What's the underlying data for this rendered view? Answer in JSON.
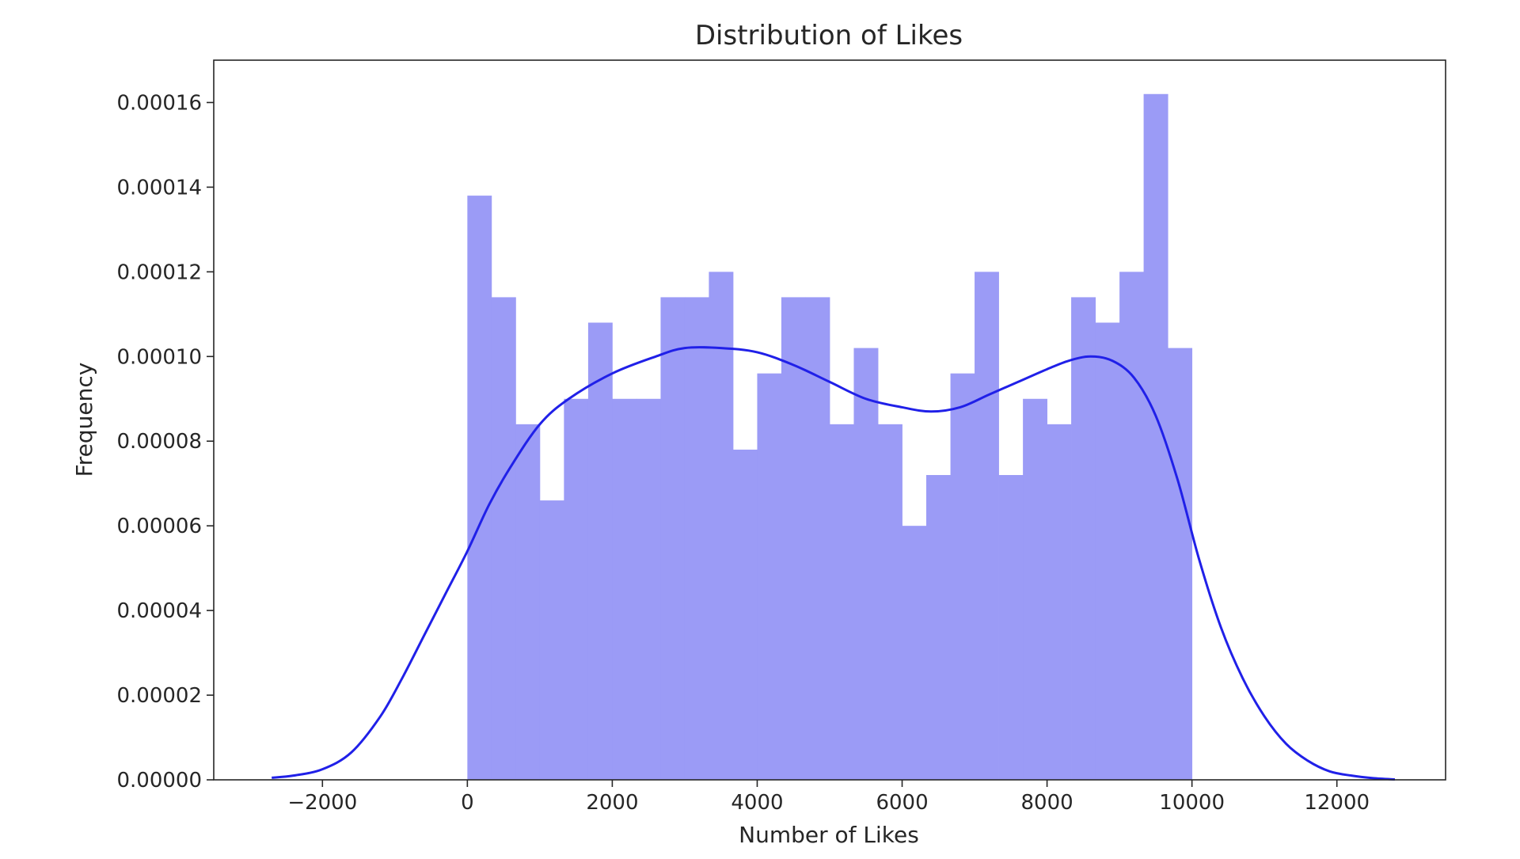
{
  "chart_data": {
    "type": "bar",
    "title": "Distribution of Likes",
    "xlabel": "Number of Likes",
    "ylabel": "Frequency",
    "xlim": [
      -3500,
      13500
    ],
    "ylim": [
      0,
      0.00017
    ],
    "x_ticks": [
      -2000,
      0,
      2000,
      4000,
      6000,
      8000,
      10000,
      12000
    ],
    "x_tick_labels": [
      "−2000",
      "0",
      "2000",
      "4000",
      "6000",
      "8000",
      "10000",
      "12000"
    ],
    "y_ticks": [
      0,
      2e-05,
      4e-05,
      6e-05,
      8e-05,
      0.0001,
      0.00012,
      0.00014,
      0.00016
    ],
    "y_tick_labels": [
      "0.00000",
      "0.00002",
      "0.00004",
      "0.00006",
      "0.00008",
      "0.00010",
      "0.00012",
      "0.00014",
      "0.00016"
    ],
    "grid": false,
    "series": [
      {
        "kind": "histogram",
        "color": "#9b9bf6",
        "bins": [
          {
            "x0": 0,
            "x1": 333,
            "value": 0.000138
          },
          {
            "x0": 333,
            "x1": 667,
            "value": 0.000114
          },
          {
            "x0": 667,
            "x1": 1000,
            "value": 8.4e-05
          },
          {
            "x0": 1000,
            "x1": 1333,
            "value": 6.6e-05
          },
          {
            "x0": 1333,
            "x1": 1667,
            "value": 9e-05
          },
          {
            "x0": 1667,
            "x1": 2000,
            "value": 0.000108
          },
          {
            "x0": 2000,
            "x1": 2333,
            "value": 9e-05
          },
          {
            "x0": 2333,
            "x1": 2667,
            "value": 9e-05
          },
          {
            "x0": 2667,
            "x1": 3000,
            "value": 0.000114
          },
          {
            "x0": 3000,
            "x1": 3333,
            "value": 0.000114
          },
          {
            "x0": 3333,
            "x1": 3667,
            "value": 0.00012
          },
          {
            "x0": 3667,
            "x1": 4000,
            "value": 7.8e-05
          },
          {
            "x0": 4000,
            "x1": 4333,
            "value": 9.6e-05
          },
          {
            "x0": 4333,
            "x1": 4667,
            "value": 0.000114
          },
          {
            "x0": 4667,
            "x1": 5000,
            "value": 0.000114
          },
          {
            "x0": 5000,
            "x1": 5333,
            "value": 8.4e-05
          },
          {
            "x0": 5333,
            "x1": 5667,
            "value": 0.000102
          },
          {
            "x0": 5667,
            "x1": 6000,
            "value": 8.4e-05
          },
          {
            "x0": 6000,
            "x1": 6333,
            "value": 6e-05
          },
          {
            "x0": 6333,
            "x1": 6667,
            "value": 7.2e-05
          },
          {
            "x0": 6667,
            "x1": 7000,
            "value": 9.6e-05
          },
          {
            "x0": 7000,
            "x1": 7333,
            "value": 0.00012
          },
          {
            "x0": 7333,
            "x1": 7667,
            "value": 7.2e-05
          },
          {
            "x0": 7667,
            "x1": 8000,
            "value": 9e-05
          },
          {
            "x0": 8000,
            "x1": 8333,
            "value": 8.4e-05
          },
          {
            "x0": 8333,
            "x1": 8667,
            "value": 0.000114
          },
          {
            "x0": 8667,
            "x1": 9000,
            "value": 0.000108
          },
          {
            "x0": 9000,
            "x1": 9333,
            "value": 0.00012
          },
          {
            "x0": 9333,
            "x1": 9667,
            "value": 0.000162
          },
          {
            "x0": 9667,
            "x1": 10000,
            "value": 0.000102
          }
        ]
      },
      {
        "kind": "kde-line",
        "color": "#2020e8",
        "x": [
          -2700,
          -2400,
          -2000,
          -1600,
          -1200,
          -900,
          -600,
          -300,
          0,
          300,
          600,
          1000,
          1400,
          2000,
          2600,
          3000,
          3500,
          4000,
          4500,
          5000,
          5500,
          6000,
          6400,
          6800,
          7200,
          7600,
          8000,
          8300,
          8600,
          8900,
          9200,
          9500,
          9800,
          10100,
          10400,
          10700,
          11000,
          11300,
          11600,
          11900,
          12200,
          12500,
          12800
        ],
        "y": [
          5e-07,
          1e-06,
          2.5e-06,
          6.5e-06,
          1.5e-05,
          2.4e-05,
          3.4e-05,
          4.4e-05,
          5.4e-05,
          6.5e-05,
          7.4e-05,
          8.4e-05,
          9e-05,
          9.6e-05,
          0.0001,
          0.000102,
          0.000102,
          0.000101,
          9.8e-05,
          9.4e-05,
          9e-05,
          8.8e-05,
          8.7e-05,
          8.8e-05,
          9.1e-05,
          9.4e-05,
          9.7e-05,
          9.9e-05,
          0.0001,
          9.9e-05,
          9.5e-05,
          8.6e-05,
          7.1e-05,
          5.2e-05,
          3.6e-05,
          2.4e-05,
          1.5e-05,
          8.5e-06,
          4.5e-06,
          2e-06,
          1e-06,
          4e-07,
          1e-07
        ]
      }
    ]
  }
}
